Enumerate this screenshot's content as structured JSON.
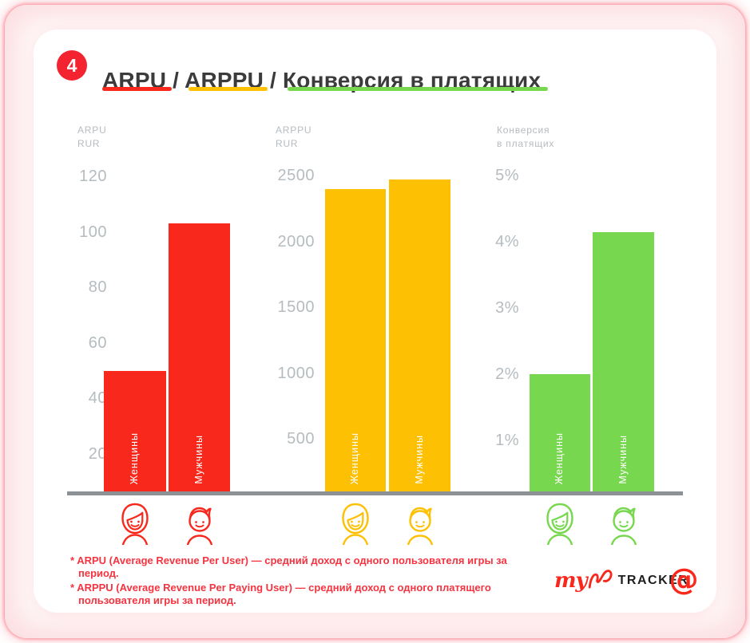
{
  "badge": {
    "number": "4"
  },
  "title": "ARPU / ARPPU / Конверсия в платящих",
  "colors": {
    "red": "#F8281D",
    "yellow": "#FDC002",
    "green": "#77D74E",
    "axis_gray": "#B5BCC0",
    "baseline_gray": "#8B9194",
    "footnote_red": "#F43440",
    "badge_red": "#F42330",
    "title_dark": "#3B3B3B",
    "tracker_black": "#1E1E1E"
  },
  "chart_data": [
    {
      "type": "bar",
      "title": "ARPU RUR",
      "caption_lines": [
        "ARPU",
        "RUR"
      ],
      "ylabel": "RUR",
      "yticks": [
        120,
        100,
        80,
        60,
        40,
        20
      ],
      "ylim": [
        0,
        130
      ],
      "grid": false,
      "legend_position": "none",
      "categories": [
        "Женщины",
        "Мужчины"
      ],
      "values": [
        50,
        103
      ],
      "bar_color": "#F8281D",
      "icons": [
        "woman",
        "man"
      ]
    },
    {
      "type": "bar",
      "title": "ARPPU RUR",
      "caption_lines": [
        "ARPPU",
        "RUR"
      ],
      "ylabel": "RUR",
      "yticks": [
        2500,
        2000,
        1500,
        1000,
        500
      ],
      "ylim": [
        0,
        2600
      ],
      "grid": false,
      "legend_position": "none",
      "categories": [
        "Женщины",
        "Мужчины"
      ],
      "values": [
        2400,
        2470
      ],
      "bar_color": "#FDC002",
      "icons": [
        "woman",
        "man"
      ]
    },
    {
      "type": "bar",
      "title": "Конверсия в платящих",
      "caption_lines": [
        "Конверсия",
        "в платящих"
      ],
      "ylabel": "%",
      "yticks": [
        "5%",
        "4%",
        "3%",
        "2%",
        "1%"
      ],
      "ylim": [
        0,
        5.5
      ],
      "grid": false,
      "legend_position": "none",
      "categories": [
        "Женщины",
        "Мужчины"
      ],
      "values": [
        2.0,
        4.15
      ],
      "bar_color": "#77D74E",
      "icons": [
        "woman",
        "man"
      ]
    }
  ],
  "footnotes": [
    "* ARPU (Average Revenue Per User) — средний доход с одного пользователя игры за период.",
    "* ARPPU (Average Revenue Per Paying User) — средний доход с одного платящего пользователя игры за период."
  ],
  "logo": {
    "my": "my",
    "tracker": "TRACKER",
    "at_sign": "@"
  }
}
